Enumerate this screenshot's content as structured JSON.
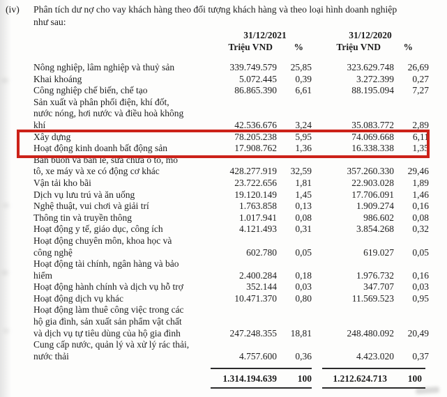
{
  "document": {
    "item_marker": "(iv)",
    "intro_text": "Phân tích dư nợ cho vay khách hàng theo đối tượng khách hàng và theo loại hình doanh nghiệp\nnhư sau:"
  },
  "table": {
    "column_groups": [
      {
        "date": "31/12/2021",
        "unit_label": "Triệu VND",
        "pct_label": "%"
      },
      {
        "date": "31/12/2020",
        "unit_label": "Triệu VND",
        "pct_label": "%"
      }
    ],
    "rows": [
      {
        "label": "Nông nghiệp, lâm nghiệp và thuỷ sản",
        "amount_2021": "339.749.579",
        "pct_2021": "25,85",
        "amount_2020": "323.629.748",
        "pct_2020": "26,69"
      },
      {
        "label": "Khai khoáng",
        "amount_2021": "5.072.445",
        "pct_2021": "0,39",
        "amount_2020": "3.272.399",
        "pct_2020": "0,27"
      },
      {
        "label": "Công nghiệp chế biến, chế tạo",
        "amount_2021": "86.865.390",
        "pct_2021": "6,61",
        "amount_2020": "88.195.094",
        "pct_2020": "7,27"
      },
      {
        "label": "Sản xuất và phân phối điện, khí đốt,\nnước nóng, hơi nước và điều hoà không\nkhí",
        "amount_2021": "42.536.676",
        "pct_2021": "3,24",
        "amount_2020": "35.083.772",
        "pct_2020": "2,89"
      },
      {
        "label": "Xây dựng",
        "amount_2021": "78.205.238",
        "pct_2021": "5,95",
        "amount_2020": "74.069.668",
        "pct_2020": "6,11",
        "highlighted": true
      },
      {
        "label": "Hoạt động kinh doanh bất động sản",
        "amount_2021": "17.908.762",
        "pct_2021": "1,36",
        "amount_2020": "16.338.338",
        "pct_2020": "1,35",
        "highlighted": true
      },
      {
        "label": "Bán buôn và bán lẻ, sửa chữa ô tô, mô\ntô, xe máy và xe có động cơ khác",
        "amount_2021": "428.277.919",
        "pct_2021": "32,59",
        "amount_2020": "357.260.330",
        "pct_2020": "29,46"
      },
      {
        "label": "Vận tải kho bãi",
        "amount_2021": "23.722.656",
        "pct_2021": "1,81",
        "amount_2020": "22.903.028",
        "pct_2020": "1,89"
      },
      {
        "label": "Dịch vụ lưu trú và ăn uống",
        "amount_2021": "19.120.149",
        "pct_2021": "1,45",
        "amount_2020": "17.706.091",
        "pct_2020": "1,46"
      },
      {
        "label": "Nghệ thuật, vui chơi và giải trí",
        "amount_2021": "1.763.858",
        "pct_2021": "0,13",
        "amount_2020": "1.909.274",
        "pct_2020": "0,16"
      },
      {
        "label": "Thông tin và truyền thông",
        "amount_2021": "1.017.941",
        "pct_2021": "0,08",
        "amount_2020": "986.602",
        "pct_2020": "0,08"
      },
      {
        "label": "Hoạt động y tế, giáo dục, công ích",
        "amount_2021": "4.121.493",
        "pct_2021": "0,31",
        "amount_2020": "3.854.268",
        "pct_2020": "0,32"
      },
      {
        "label": "Hoạt động chuyên môn, khoa học và\ncông nghệ",
        "amount_2021": "602.780",
        "pct_2021": "0,05",
        "amount_2020": "619.027",
        "pct_2020": "0,05"
      },
      {
        "label": "Hoạt động tài chính, ngân hàng và bảo\nhiểm",
        "amount_2021": "2.400.284",
        "pct_2021": "0,18",
        "amount_2020": "1.976.732",
        "pct_2020": "0,16"
      },
      {
        "label": "Hoạt động hành chính và dịch vụ hỗ trợ",
        "amount_2021": "352.144",
        "pct_2021": "0,03",
        "amount_2020": "347.707",
        "pct_2020": "0,03"
      },
      {
        "label": "Hoạt động dịch vụ khác",
        "amount_2021": "10.471.370",
        "pct_2021": "0,80",
        "amount_2020": "11.569.523",
        "pct_2020": "0,95"
      },
      {
        "label": "Hoạt động làm thuê công việc trong các\nhộ gia đình, sản xuất sản phẩm vật chất\nvà dịch vụ tự tiêu dùng của hộ gia đình",
        "amount_2021": "247.248.355",
        "pct_2021": "18,81",
        "amount_2020": "248.480.092",
        "pct_2020": "20,49"
      },
      {
        "label": "Cung cấp nước, quản lý và xử lý rác thải,\nnước thải",
        "amount_2021": "4.757.600",
        "pct_2021": "0,36",
        "amount_2020": "4.423.020",
        "pct_2020": "0,37"
      }
    ],
    "total": {
      "amount_2021": "1.314.194.639",
      "pct_2021": "100",
      "amount_2020": "1.212.624.713",
      "pct_2020": "100"
    }
  },
  "annotations": {
    "highlight_box": {
      "color": "#cc2219",
      "rows": [
        "Xây dựng",
        "Hoạt động kinh doanh bất động sản"
      ]
    }
  }
}
